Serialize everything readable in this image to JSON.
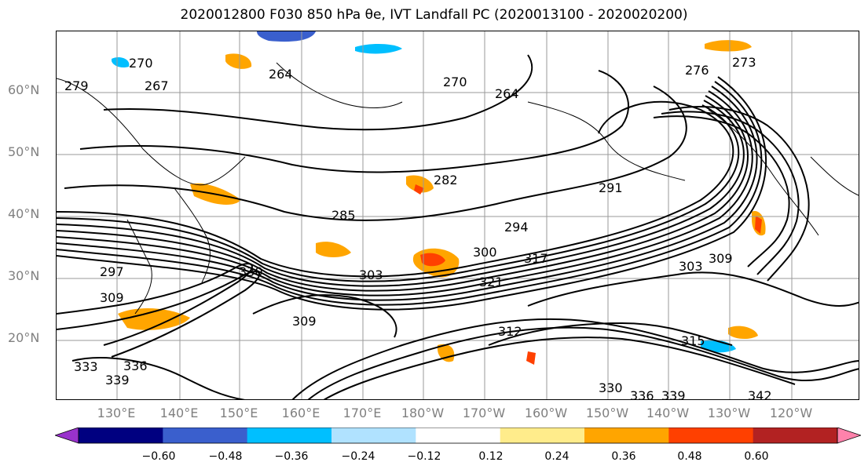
{
  "title": "2020012800 F030 850 hPa θe, IVT Landfall PC (2020013100 - 2020020200)",
  "map": {
    "lat_labels": [
      "60°N",
      "50°N",
      "40°N",
      "30°N",
      "20°N"
    ],
    "lon_labels": [
      "130°E",
      "140°E",
      "150°E",
      "160°E",
      "170°E",
      "180°W",
      "170°W",
      "160°W",
      "150°W",
      "140°W",
      "130°W",
      "120°W"
    ],
    "contour_labels": [
      "270",
      "279",
      "267",
      "264",
      "270",
      "264",
      "276",
      "273",
      "282",
      "291",
      "285",
      "294",
      "300",
      "303",
      "317",
      "321",
      "309",
      "297",
      "309",
      "330",
      "312",
      "315",
      "303",
      "309",
      "333",
      "336",
      "339",
      "330",
      "336",
      "339",
      "342"
    ],
    "contour_color": "#000000",
    "grid_color": "#999999",
    "coastline_color": "#000000"
  },
  "colorbar": {
    "colors": [
      "#9932CC",
      "#000080",
      "#3A5FCD",
      "#00BFFF",
      "#B0E2FF",
      "#FFFFFF",
      "#FFEC8B",
      "#FFA500",
      "#FF4000",
      "#B22222",
      "#FF82AB"
    ],
    "tick_labels": [
      "−0.60",
      "−0.48",
      "−0.36",
      "−0.24",
      "−0.12",
      "0.12",
      "0.24",
      "0.36",
      "0.48",
      "0.60"
    ]
  }
}
